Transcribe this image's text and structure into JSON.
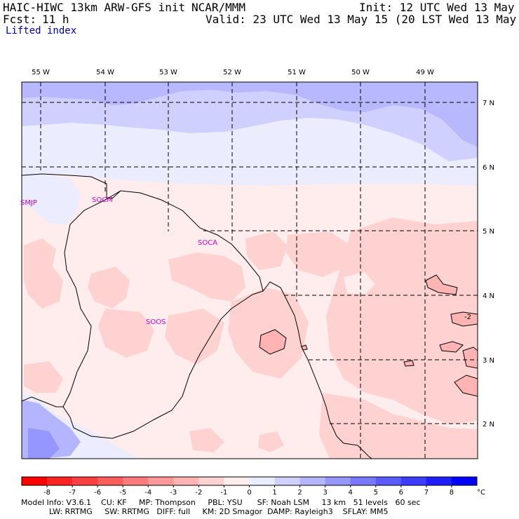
{
  "header": {
    "title_left": "HAIC-HIWC 13km ARW-GFS init",
    "title_mid": "NCAR/MMM",
    "init": "Init: 12 UTC Wed 13 May 15",
    "fcst_label": "Fcst:",
    "fcst_value": "11 h",
    "valid": "Valid: 23 UTC Wed 13 May 15 (20 LST Wed 13 May 15)",
    "field": "Lifted index"
  },
  "map": {
    "lon_labels": [
      "55 W",
      "54 W",
      "53 W",
      "52 W",
      "51 W",
      "50 W",
      "49 W"
    ],
    "lat_labels": [
      "7 N",
      "6 N",
      "5 N",
      "4 N",
      "3 N",
      "2 N"
    ],
    "stations": [
      "SMJP",
      "SOCM",
      "SOCA",
      "SOOS"
    ],
    "contour_label": "-2"
  },
  "colorbar": {
    "ticks": [
      "-8",
      "-7",
      "-6",
      "-5",
      "-4",
      "-3",
      "-2",
      "-1",
      "0",
      "1",
      "2",
      "3",
      "4",
      "5",
      "6",
      "7",
      "8"
    ],
    "unit": "°C",
    "colors": [
      "#ff0000",
      "#ff2222",
      "#ff4040",
      "#ff5c5c",
      "#ff7a7a",
      "#ff9898",
      "#ffb4b4",
      "#ffd2d2",
      "#ffecec",
      "#ececff",
      "#d0d0ff",
      "#b4b4ff",
      "#9696ff",
      "#7878ff",
      "#5a5aff",
      "#3c3cff",
      "#1e1eff",
      "#0000ff"
    ]
  },
  "footer": {
    "line1": "Model Info: V3.6.1    CU: KF     MP: Thompson     PBL: YSU      SF: Noah LSM     13 km   51 levels   60 sec",
    "line2": "LW: RRTMG     SW: RRTMG   DIFF: full     KM: 2D Smagor  DAMP: Rayleigh3    SFLAY: MM5"
  }
}
